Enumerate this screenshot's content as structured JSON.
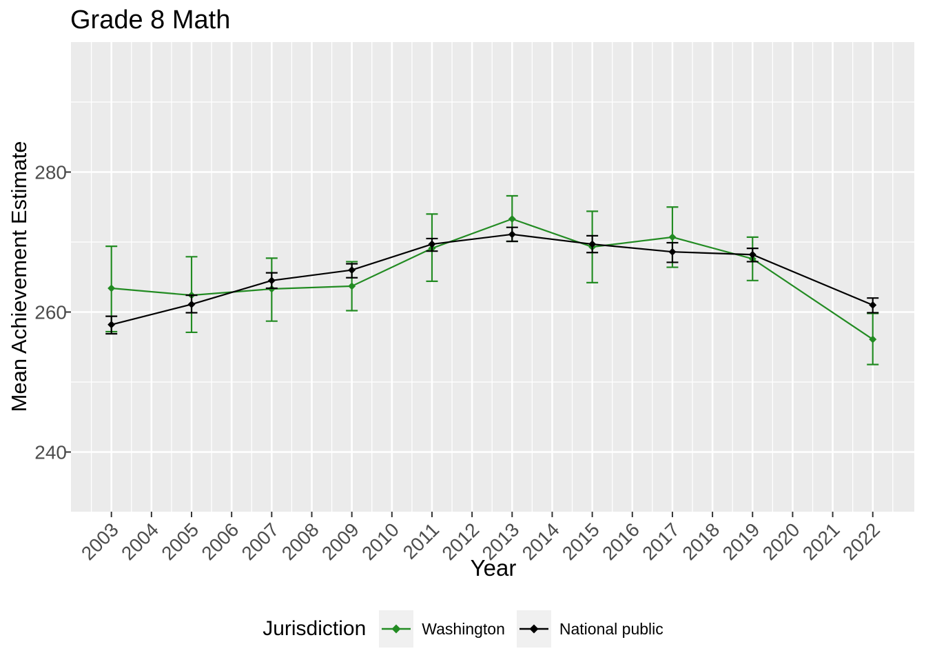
{
  "legend": {
    "title": "Jurisdiction"
  },
  "colors": {
    "panel_background": "#EBEBEB",
    "gridline": "#FFFFFF",
    "axis_text": "#4D4D4D",
    "tick_mark": "#333333",
    "legend_key_background": "#F0F0F0",
    "washington_green": "#228B22",
    "national_black": "#000000"
  },
  "chart_data": {
    "type": "line",
    "title": "Grade 8 Math",
    "xlabel": "Year",
    "ylabel": "Mean Achievement Estimate",
    "x": [
      2003,
      2005,
      2007,
      2009,
      2011,
      2013,
      2015,
      2017,
      2019,
      2022
    ],
    "series": [
      {
        "name": "Washington",
        "color": "#228B22",
        "values": [
          263.4,
          262.4,
          263.3,
          263.7,
          269.1,
          273.3,
          269.3,
          270.7,
          267.6,
          256.1
        ],
        "err_low": [
          257.2,
          257.1,
          258.7,
          260.2,
          264.4,
          270.1,
          264.2,
          266.4,
          264.5,
          252.5
        ],
        "err_high": [
          269.4,
          267.9,
          267.7,
          267.2,
          274.0,
          276.6,
          274.4,
          275.0,
          270.7,
          259.8
        ]
      },
      {
        "name": "National public",
        "color": "#000000",
        "values": [
          258.2,
          261.1,
          264.5,
          266.0,
          269.7,
          271.1,
          269.7,
          268.6,
          268.2,
          261.0
        ],
        "err_low": [
          256.9,
          259.9,
          263.4,
          264.9,
          268.7,
          270.1,
          268.5,
          267.1,
          267.2,
          259.9
        ],
        "err_high": [
          259.4,
          262.4,
          265.6,
          266.9,
          270.5,
          272.1,
          270.9,
          269.9,
          269.1,
          262.0
        ]
      }
    ],
    "x_axis_years": [
      2003,
      2004,
      2005,
      2006,
      2007,
      2008,
      2009,
      2010,
      2011,
      2012,
      2013,
      2014,
      2015,
      2016,
      2017,
      2018,
      2019,
      2020,
      2021,
      2022
    ],
    "y_ticks_major": [
      280,
      260,
      240
    ],
    "y_ticks_minor": [
      290,
      270,
      250
    ],
    "ylim": [
      231.5,
      298.6
    ],
    "grid": true,
    "error_bars": true,
    "marker": "diamond",
    "legend_position": "bottom",
    "legend_title": "Jurisdiction"
  }
}
